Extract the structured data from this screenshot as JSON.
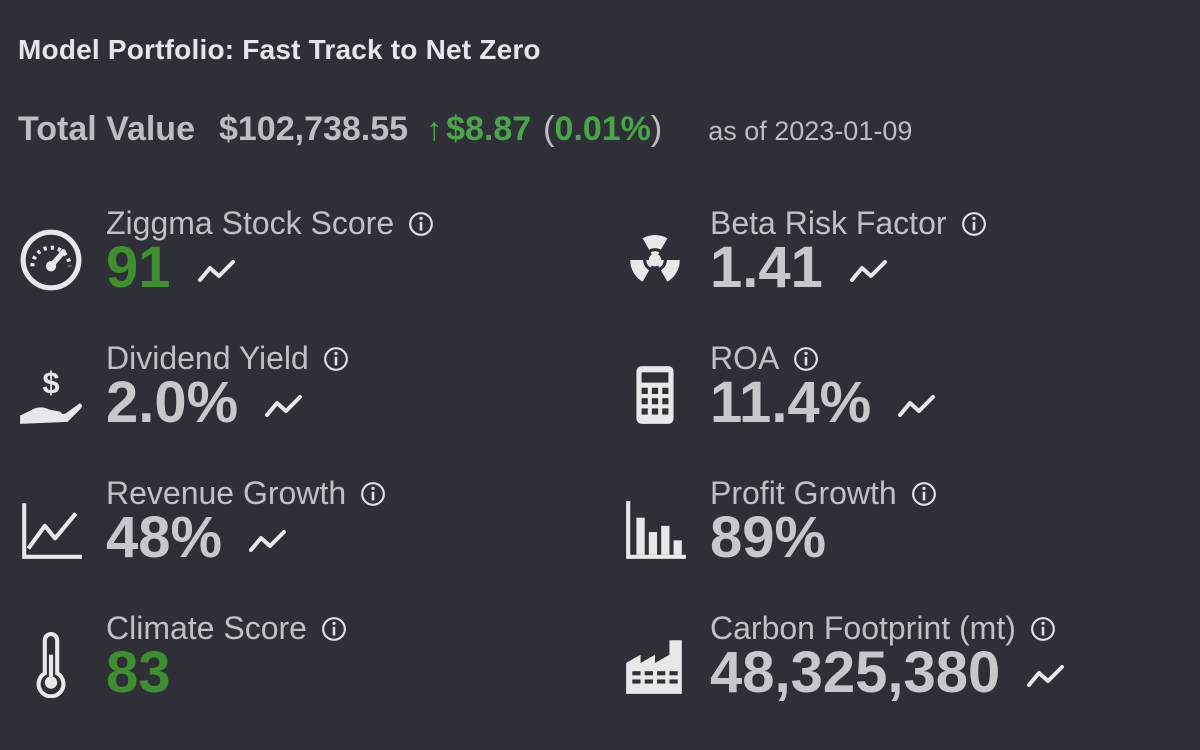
{
  "header": {
    "title": "Model Portfolio: Fast Track to Net Zero"
  },
  "summary": {
    "total_label": "Total Value",
    "total_value": "$102,738.55",
    "change_arrow": "↑",
    "change_value": "$8.87",
    "paren_open": "(",
    "change_pct": "0.01%",
    "paren_close": ")",
    "as_of": "as of 2023-01-09",
    "positive_color": "#4aa54a"
  },
  "metrics": {
    "ziggma_score": {
      "label": "Ziggma Stock Score",
      "value": "91",
      "icon": "gauge-icon"
    },
    "beta": {
      "label": "Beta Risk Factor",
      "value": "1.41",
      "icon": "radiation-icon"
    },
    "dividend": {
      "label": "Dividend Yield",
      "value": "2.0%",
      "icon": "dividend-hand-icon"
    },
    "roa": {
      "label": "ROA",
      "value": "11.4%",
      "icon": "calculator-icon"
    },
    "revenue": {
      "label": "Revenue Growth",
      "value": "48%",
      "icon": "line-chart-icon"
    },
    "profit": {
      "label": "Profit Growth",
      "value": "89%",
      "icon": "bar-chart-icon"
    },
    "climate": {
      "label": "Climate Score",
      "value": "83",
      "icon": "thermometer-icon"
    },
    "carbon": {
      "label": "Carbon Footprint (mt)",
      "value": "48,325,380",
      "icon": "factory-icon"
    }
  }
}
